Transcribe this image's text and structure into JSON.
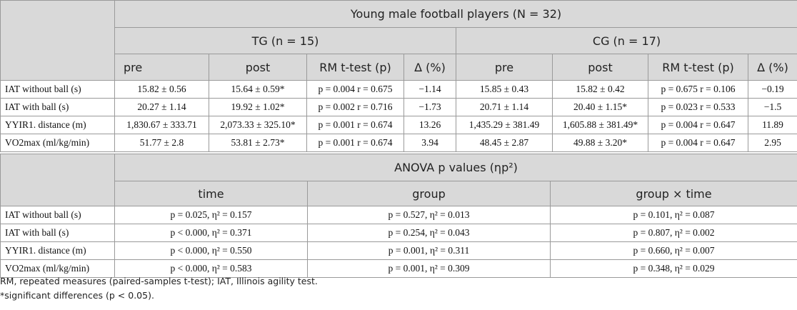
{
  "table1": {
    "group_title": "Young male football players (N = 32)",
    "tg_title": "TG (n = 15)",
    "cg_title": "CG (n = 17)",
    "col_pre": "pre",
    "col_post": "post",
    "col_rm": "RM t-test (p)",
    "col_delta": "Δ (%)",
    "rows": [
      {
        "label": "IAT without ball (s)",
        "tg_pre": "15.82 ± 0.56",
        "tg_post": "15.64 ± 0.59*",
        "tg_rm": "p = 0.004  r = 0.675",
        "tg_delta": "−1.14",
        "cg_pre": "15.85 ± 0.43",
        "cg_post": "15.82 ± 0.42",
        "cg_rm": "p = 0.675  r = 0.106",
        "cg_delta": "−0.19"
      },
      {
        "label": "IAT with ball (s)",
        "tg_pre": "20.27 ± 1.14",
        "tg_post": "19.92 ± 1.02*",
        "tg_rm": "p = 0.002  r = 0.716",
        "tg_delta": "−1.73",
        "cg_pre": "20.71 ± 1.14",
        "cg_post": "20.40 ± 1.15*",
        "cg_rm": "p = 0.023  r = 0.533",
        "cg_delta": "−1.5"
      },
      {
        "label": "YYIR1. distance (m)",
        "tg_pre": "1,830.67 ± 333.71",
        "tg_post": "2,073.33 ± 325.10*",
        "tg_rm": "p = 0.001  r = 0.674",
        "tg_delta": "13.26",
        "cg_pre": "1,435.29 ± 381.49",
        "cg_post": "1,605.88 ± 381.49*",
        "cg_rm": "p = 0.004  r = 0.647",
        "cg_delta": "11.89"
      },
      {
        "label": "VO2max (ml/kg/min)",
        "tg_pre": "51.77 ± 2.8",
        "tg_post": "53.81 ± 2.73*",
        "tg_rm": "p = 0.001  r = 0.674",
        "tg_delta": "3.94",
        "cg_pre": "48.45 ± 2.87",
        "cg_post": "49.88 ± 3.20*",
        "cg_rm": "p = 0.004  r = 0.647",
        "cg_delta": "2.95"
      }
    ]
  },
  "table2": {
    "title": "ANOVA p values (ηp²)",
    "col_time": "time",
    "col_group": "group",
    "col_gxt": "group × time",
    "rows": [
      {
        "label": "IAT without ball (s)",
        "time": "p = 0.025, η² = 0.157",
        "group": "p = 0.527, η² = 0.013",
        "gxt": "p = 0.101, η² = 0.087"
      },
      {
        "label": "IAT with ball (s)",
        "time": "p < 0.000, η² = 0.371",
        "group": "p = 0.254, η² = 0.043",
        "gxt": "p = 0.807, η² = 0.002"
      },
      {
        "label": "YYIR1. distance (m)",
        "time": "p < 0.000, η² = 0.550",
        "group": "p = 0.001, η² = 0.311",
        "gxt": "p = 0.660, η² = 0.007"
      },
      {
        "label": "VO2max (ml/kg/min)",
        "time": "p < 0.000, η² = 0.583",
        "group": "p = 0.001, η² = 0.309",
        "gxt": "p = 0.348, η² = 0.029"
      }
    ]
  },
  "footnotes": {
    "abbrev": "RM, repeated measures (paired-samples t-test); IAT, Illinois agility test.",
    "sig": "*significant differences (p < 0.05)."
  }
}
